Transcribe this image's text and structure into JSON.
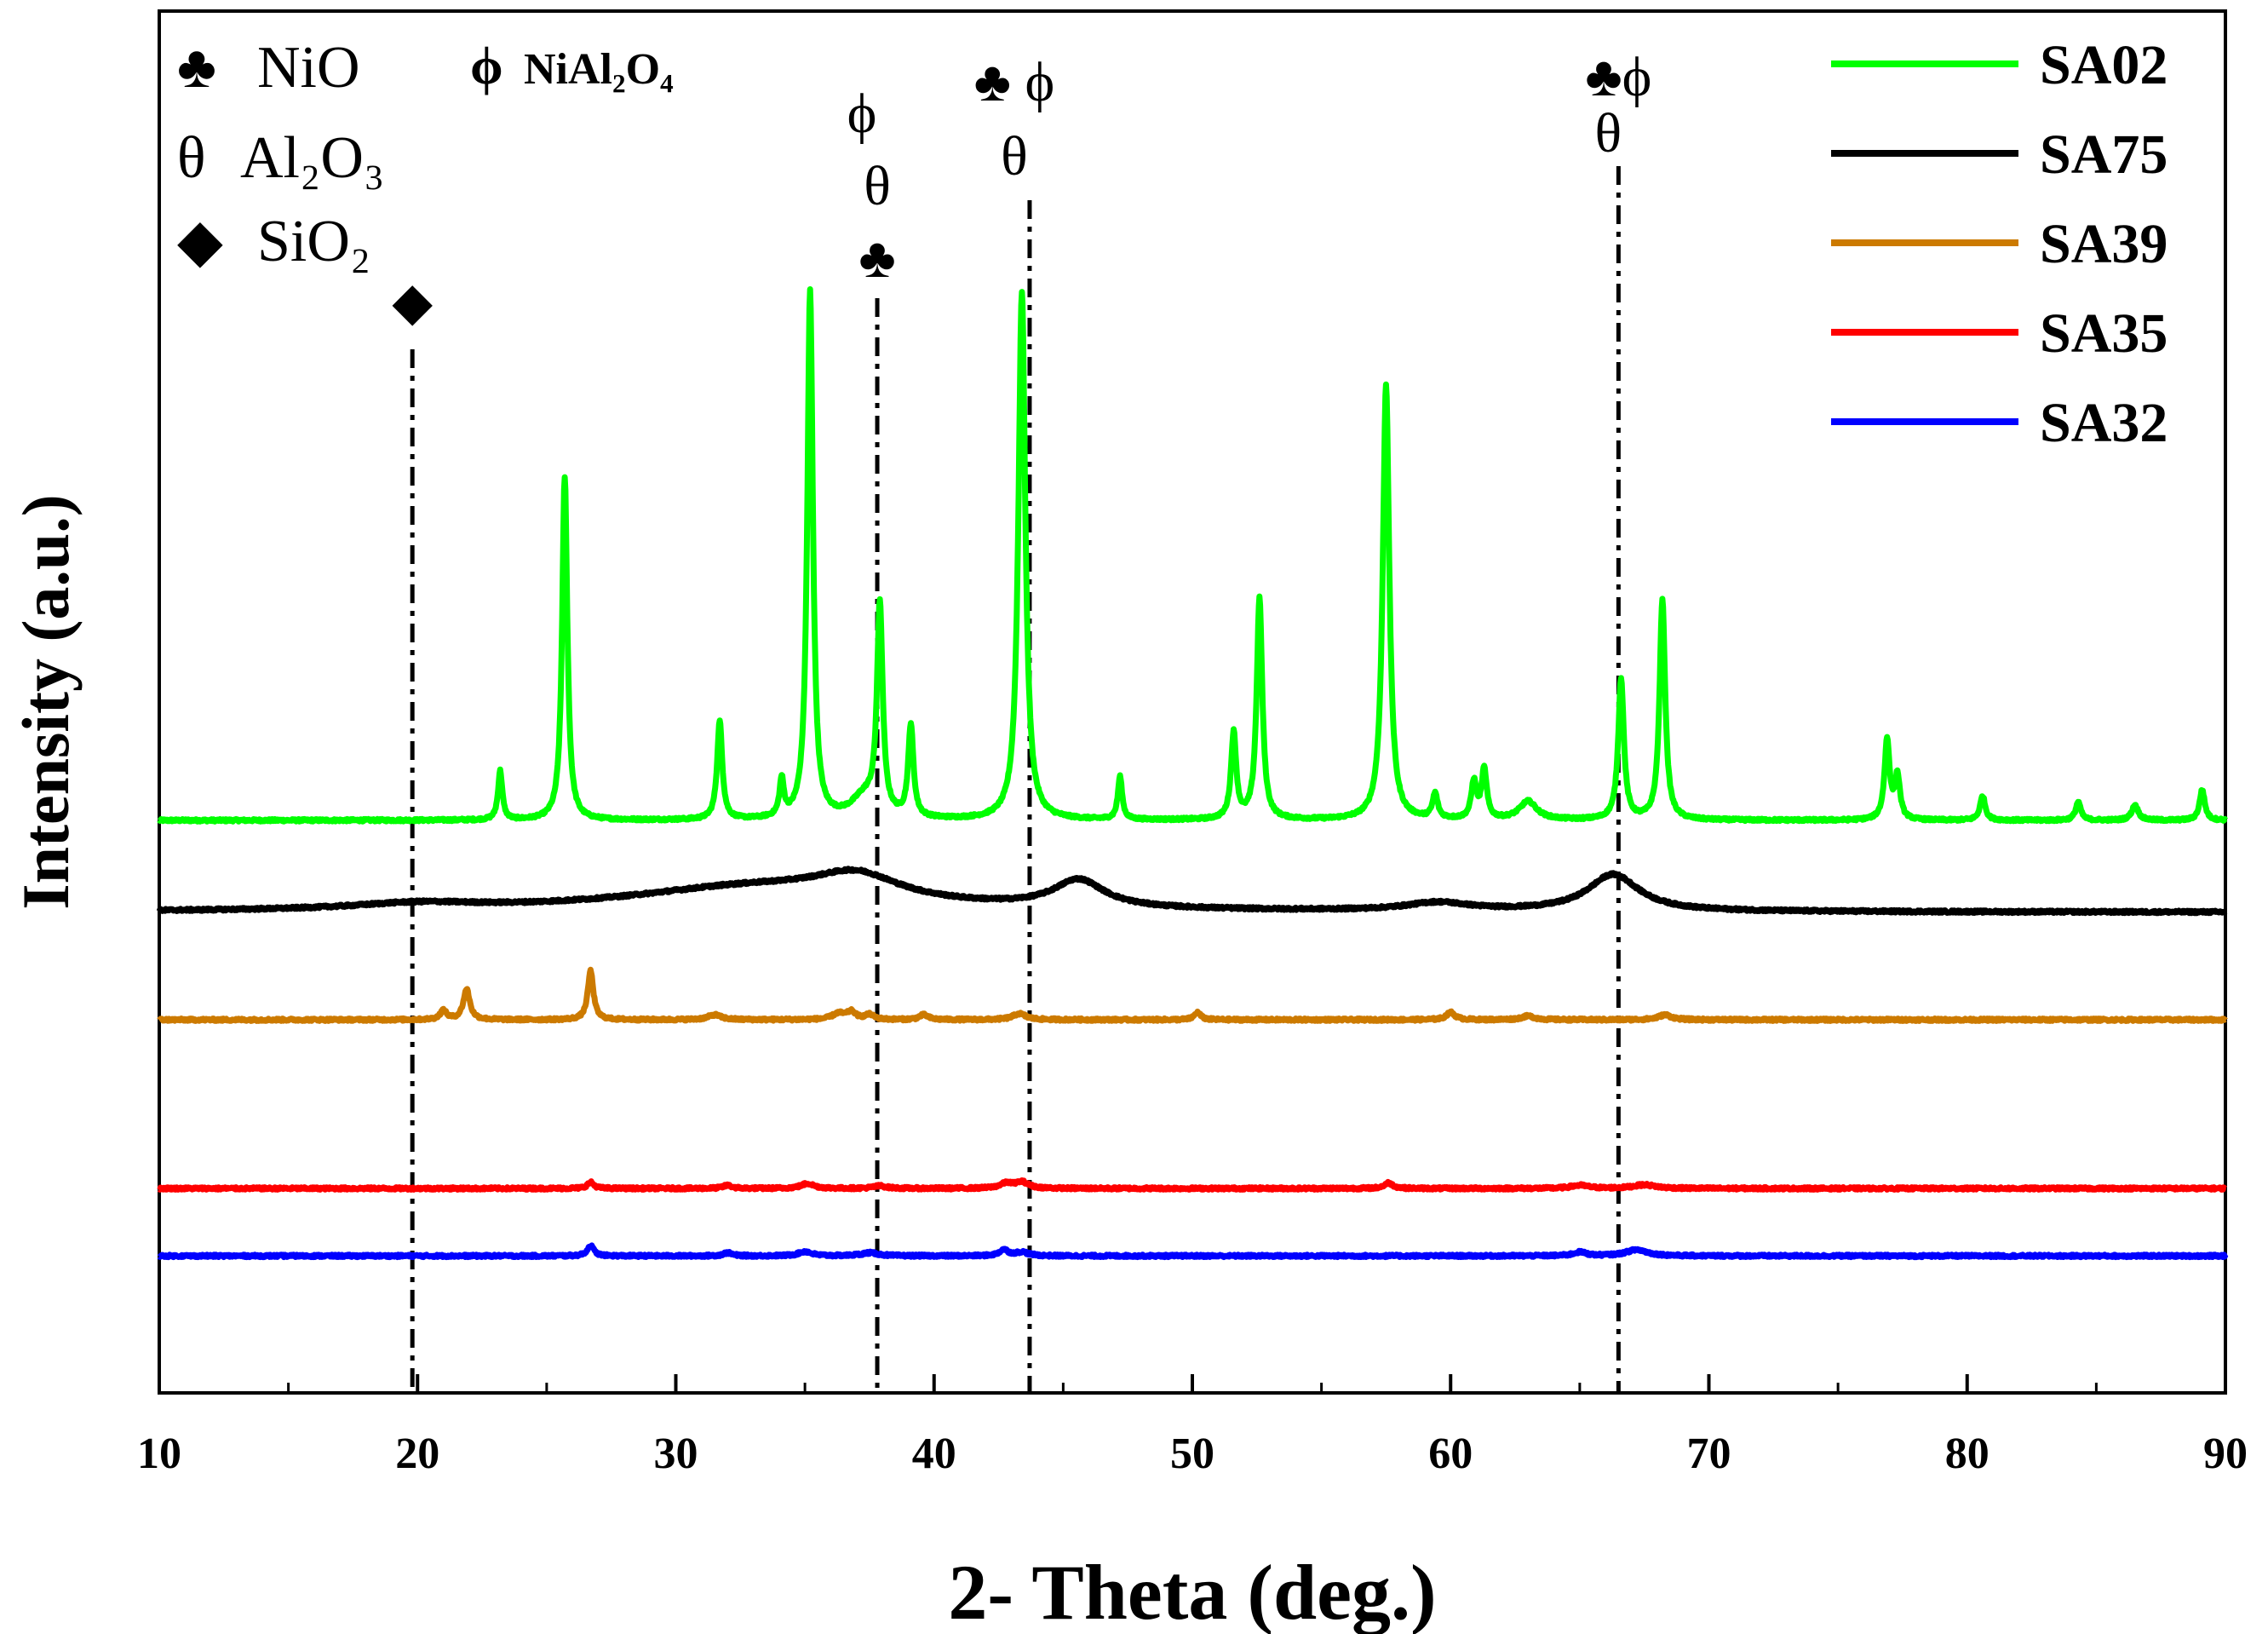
{
  "chart_data": {
    "type": "line",
    "title": "",
    "xlabel": "2- Theta (deg.)",
    "ylabel": "Intensity (a.u.)",
    "xlim": [
      10,
      90
    ],
    "xticks": [
      "10",
      "20",
      "30",
      "40",
      "50",
      "60",
      "70",
      "80",
      "90"
    ],
    "y_ticks_shown": false,
    "legend_position": "top-right",
    "phase_legend": [
      {
        "symbol": "♣",
        "name": "NiO"
      },
      {
        "symbol": "θ",
        "name": "Al₂O₃"
      },
      {
        "symbol": "◆",
        "name": "SiO₂"
      },
      {
        "symbol": "ϕ",
        "name": "NiAl₂O₄"
      }
    ],
    "reference_lines": [
      {
        "x": 19.8,
        "markers": [
          "◆"
        ]
      },
      {
        "x": 37.8,
        "markers": [
          "ϕ",
          "θ",
          "♣"
        ]
      },
      {
        "x": 43.7,
        "markers": [
          "♣ ϕ",
          "θ"
        ]
      },
      {
        "x": 66.5,
        "markers": [
          "♣ϕ",
          "θ"
        ]
      }
    ],
    "series": [
      {
        "name": "SA02",
        "color": "#00ff00",
        "baseline": 0.0,
        "offset": 0.0,
        "peaks": [
          [
            23.2,
            0.08,
            0.1
          ],
          [
            25.7,
            0.56,
            0.12
          ],
          [
            31.7,
            0.16,
            0.12
          ],
          [
            34.1,
            0.06,
            0.1
          ],
          [
            35.2,
            0.86,
            0.13
          ],
          [
            37.3,
            0.035,
            0.6
          ],
          [
            37.9,
            0.34,
            0.13
          ],
          [
            39.1,
            0.15,
            0.12
          ],
          [
            43.4,
            0.86,
            0.16
          ],
          [
            47.2,
            0.07,
            0.1
          ],
          [
            51.6,
            0.14,
            0.12
          ],
          [
            52.6,
            0.36,
            0.13
          ],
          [
            57.5,
            0.71,
            0.15
          ],
          [
            59.4,
            0.04,
            0.12
          ],
          [
            60.9,
            0.06,
            0.12
          ],
          [
            61.3,
            0.08,
            0.12
          ],
          [
            63.0,
            0.03,
            0.4
          ],
          [
            66.6,
            0.23,
            0.13
          ],
          [
            68.2,
            0.36,
            0.13
          ],
          [
            76.9,
            0.13,
            0.12
          ],
          [
            77.3,
            0.07,
            0.12
          ],
          [
            80.6,
            0.04,
            0.12
          ],
          [
            84.3,
            0.03,
            0.12
          ],
          [
            86.5,
            0.025,
            0.15
          ],
          [
            89.1,
            0.05,
            0.12
          ]
        ]
      },
      {
        "name": "SA75",
        "color": "#000000",
        "baseline": 0.0,
        "offset": -0.15,
        "peaks": [
          [
            20.0,
            0.01,
            3.0
          ],
          [
            33.0,
            0.04,
            6.0
          ],
          [
            37.0,
            0.04,
            2.0
          ],
          [
            45.6,
            0.045,
            1.2
          ],
          [
            59.5,
            0.013,
            1.5
          ],
          [
            66.3,
            0.06,
            1.2
          ]
        ]
      },
      {
        "name": "SA39",
        "color": "#cc7a00",
        "baseline": 0.0,
        "offset": -0.325,
        "peaks": [
          [
            21.0,
            0.015,
            0.15
          ],
          [
            21.9,
            0.05,
            0.15
          ],
          [
            26.7,
            0.08,
            0.13
          ],
          [
            31.5,
            0.008,
            0.3
          ],
          [
            36.3,
            0.01,
            0.3
          ],
          [
            36.8,
            0.012,
            0.2
          ],
          [
            37.5,
            0.008,
            0.2
          ],
          [
            39.6,
            0.008,
            0.2
          ],
          [
            43.3,
            0.01,
            0.3
          ],
          [
            50.2,
            0.012,
            0.15
          ],
          [
            60.0,
            0.012,
            0.2
          ],
          [
            63.0,
            0.006,
            0.3
          ],
          [
            68.3,
            0.008,
            0.3
          ]
        ]
      },
      {
        "name": "SA35",
        "color": "#ff0000",
        "baseline": 0.0,
        "offset": -0.6,
        "peaks": [
          [
            26.7,
            0.01,
            0.15
          ],
          [
            32.0,
            0.005,
            0.2
          ],
          [
            35.1,
            0.008,
            0.3
          ],
          [
            37.9,
            0.004,
            0.3
          ],
          [
            42.8,
            0.008,
            0.3
          ],
          [
            43.4,
            0.01,
            0.3
          ],
          [
            57.6,
            0.009,
            0.2
          ],
          [
            65.0,
            0.005,
            0.4
          ],
          [
            67.5,
            0.006,
            0.5
          ]
        ]
      },
      {
        "name": "SA32",
        "color": "#0000ff",
        "baseline": 0.0,
        "offset": -0.71,
        "peaks": [
          [
            26.7,
            0.017,
            0.15
          ],
          [
            32.0,
            0.005,
            0.2
          ],
          [
            35.0,
            0.007,
            0.3
          ],
          [
            37.5,
            0.005,
            0.4
          ],
          [
            42.7,
            0.01,
            0.2
          ],
          [
            43.4,
            0.006,
            0.3
          ],
          [
            65.0,
            0.006,
            0.3
          ],
          [
            67.2,
            0.01,
            0.5
          ]
        ]
      }
    ]
  }
}
